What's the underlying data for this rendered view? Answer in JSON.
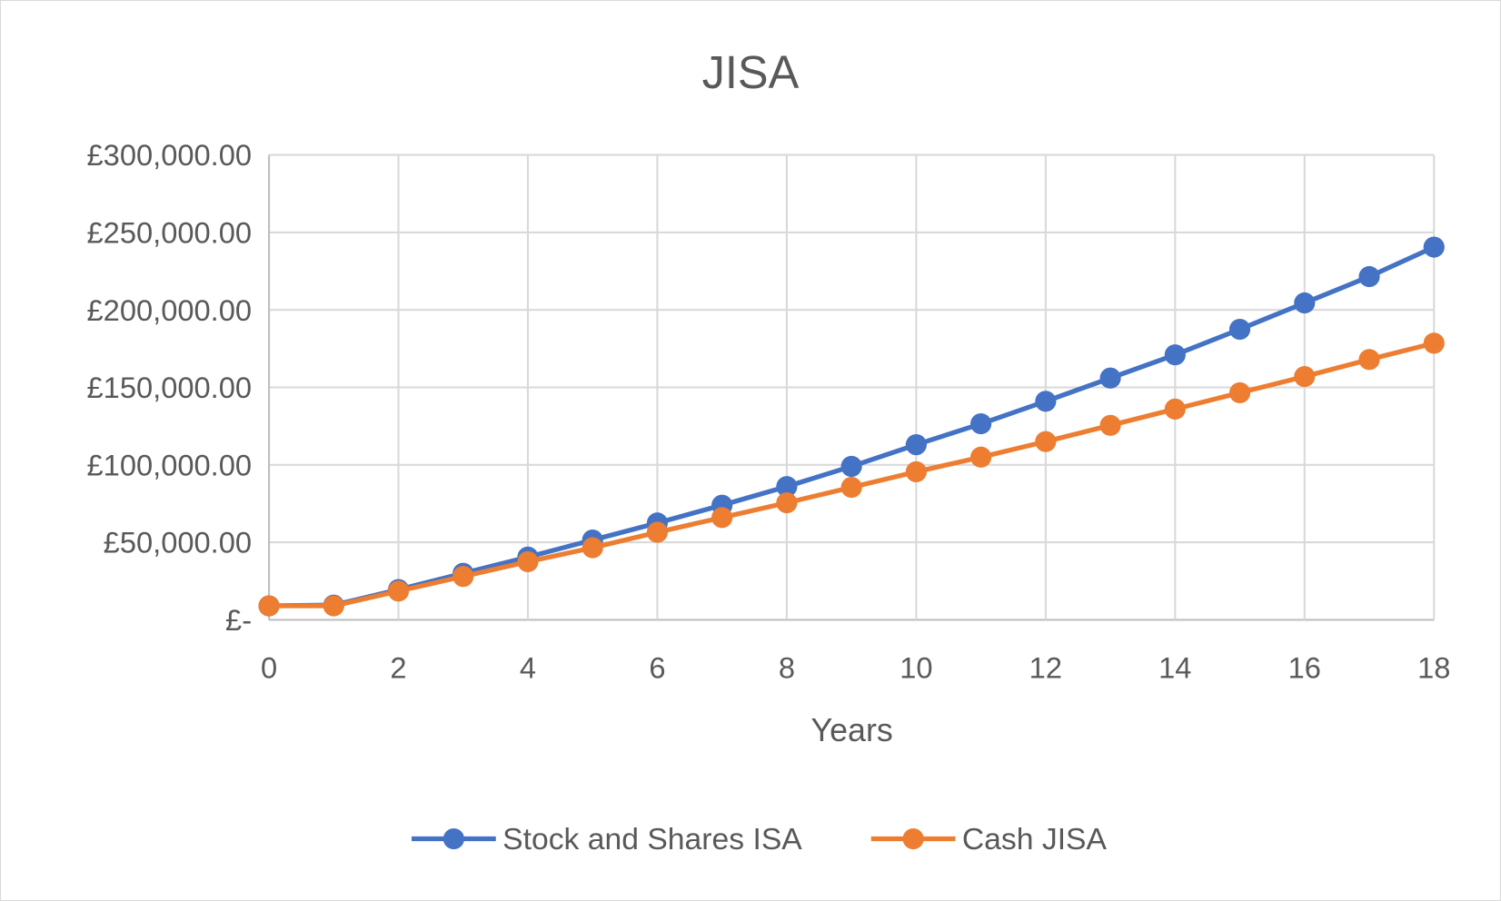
{
  "chart_data": {
    "type": "line",
    "title": "JISA",
    "xlabel": "Years",
    "ylabel": "",
    "x": [
      0,
      1,
      2,
      3,
      4,
      5,
      6,
      7,
      8,
      9,
      10,
      11,
      12,
      13,
      14,
      15,
      16,
      17,
      18
    ],
    "xticks": [
      "0",
      "2",
      "4",
      "6",
      "8",
      "10",
      "12",
      "14",
      "16",
      "18"
    ],
    "yticks": [
      "£-",
      "£50,000.00",
      "£100,000.00",
      "£150,000.00",
      "£200,000.00",
      "£250,000.00",
      "£300,000.00"
    ],
    "ylim": [
      0,
      300000
    ],
    "xlim": [
      0,
      18
    ],
    "grid": true,
    "legend_position": "bottom",
    "series": [
      {
        "name": "Stock and Shares ISA",
        "color": "#4472C4",
        "values": [
          9000,
          9500,
          19500,
          30000,
          40500,
          51500,
          62500,
          74000,
          86000,
          99000,
          113000,
          126500,
          141000,
          156000,
          171000,
          187500,
          204500,
          221500,
          240500
        ]
      },
      {
        "name": "Cash JISA",
        "color": "#ED7D31",
        "values": [
          9000,
          9000,
          18500,
          28000,
          37500,
          46500,
          56500,
          66000,
          75500,
          85500,
          95500,
          105000,
          115000,
          125500,
          136000,
          146500,
          157000,
          168000,
          178500
        ]
      }
    ]
  }
}
